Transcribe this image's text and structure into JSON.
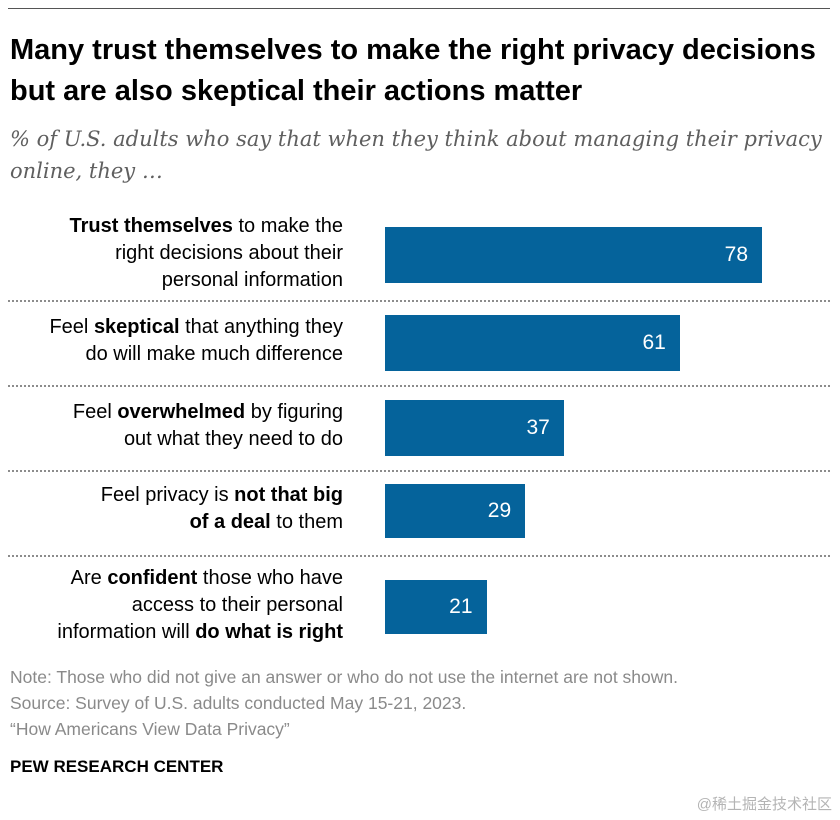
{
  "header": {
    "title": "Many trust themselves to make the right privacy decisions but are also skeptical their actions matter",
    "subtitle": "% of U.S. adults who say that when they think about managing their privacy online, they …"
  },
  "chart_data": {
    "type": "bar",
    "orientation": "horizontal",
    "title": "Many trust themselves to make the right privacy decisions but are also skeptical their actions matter",
    "subtitle": "% of U.S. adults who say that when they think about managing their privacy online, they …",
    "xlabel": "",
    "ylabel": "",
    "xlim": [
      0,
      100
    ],
    "bar_color": "#05639b",
    "categories": [
      "Trust themselves to make the right decisions about their personal information",
      "Feel skeptical that anything they do will make much difference",
      "Feel overwhelmed by figuring out what they need to do",
      "Feel privacy is not that big of a deal to them",
      "Are confident those who have access to their personal information will do what is right"
    ],
    "label_lines": [
      [
        [
          "Trust themselves",
          " to make the"
        ],
        [
          "right decisions about their"
        ],
        [
          "personal information"
        ]
      ],
      [
        [
          "Feel ",
          "skeptical",
          " that anything they"
        ],
        [
          "do will make much difference"
        ]
      ],
      [
        [
          "Feel ",
          "overwhelmed",
          " by figuring"
        ],
        [
          "out what they need to do"
        ]
      ],
      [
        [
          "Feel privacy is ",
          "not that big"
        ],
        [
          "of a deal",
          " to them"
        ]
      ],
      [
        [
          "Are ",
          "confident",
          " those who have"
        ],
        [
          "access to their personal"
        ],
        [
          "information will ",
          "do what is right"
        ]
      ]
    ],
    "label_bold": [
      [
        [
          true,
          false
        ],
        [
          false
        ],
        [
          false
        ]
      ],
      [
        [
          false,
          true,
          false
        ],
        [
          false
        ]
      ],
      [
        [
          false,
          true,
          false
        ],
        [
          false
        ]
      ],
      [
        [
          false,
          true
        ],
        [
          true,
          false
        ]
      ],
      [
        [
          false,
          true,
          false
        ],
        [
          false
        ],
        [
          false,
          true
        ]
      ]
    ],
    "values": [
      78,
      61,
      37,
      29,
      21
    ]
  },
  "footer": {
    "note": "Note: Those who did not give an answer or who do not use the internet are not shown.",
    "source": "Source: Survey of U.S. adults conducted May 15-21, 2023.",
    "report": "“How Americans View Data Privacy”",
    "brand": "PEW RESEARCH CENTER"
  },
  "watermark": "@稀土掘金技术社区"
}
